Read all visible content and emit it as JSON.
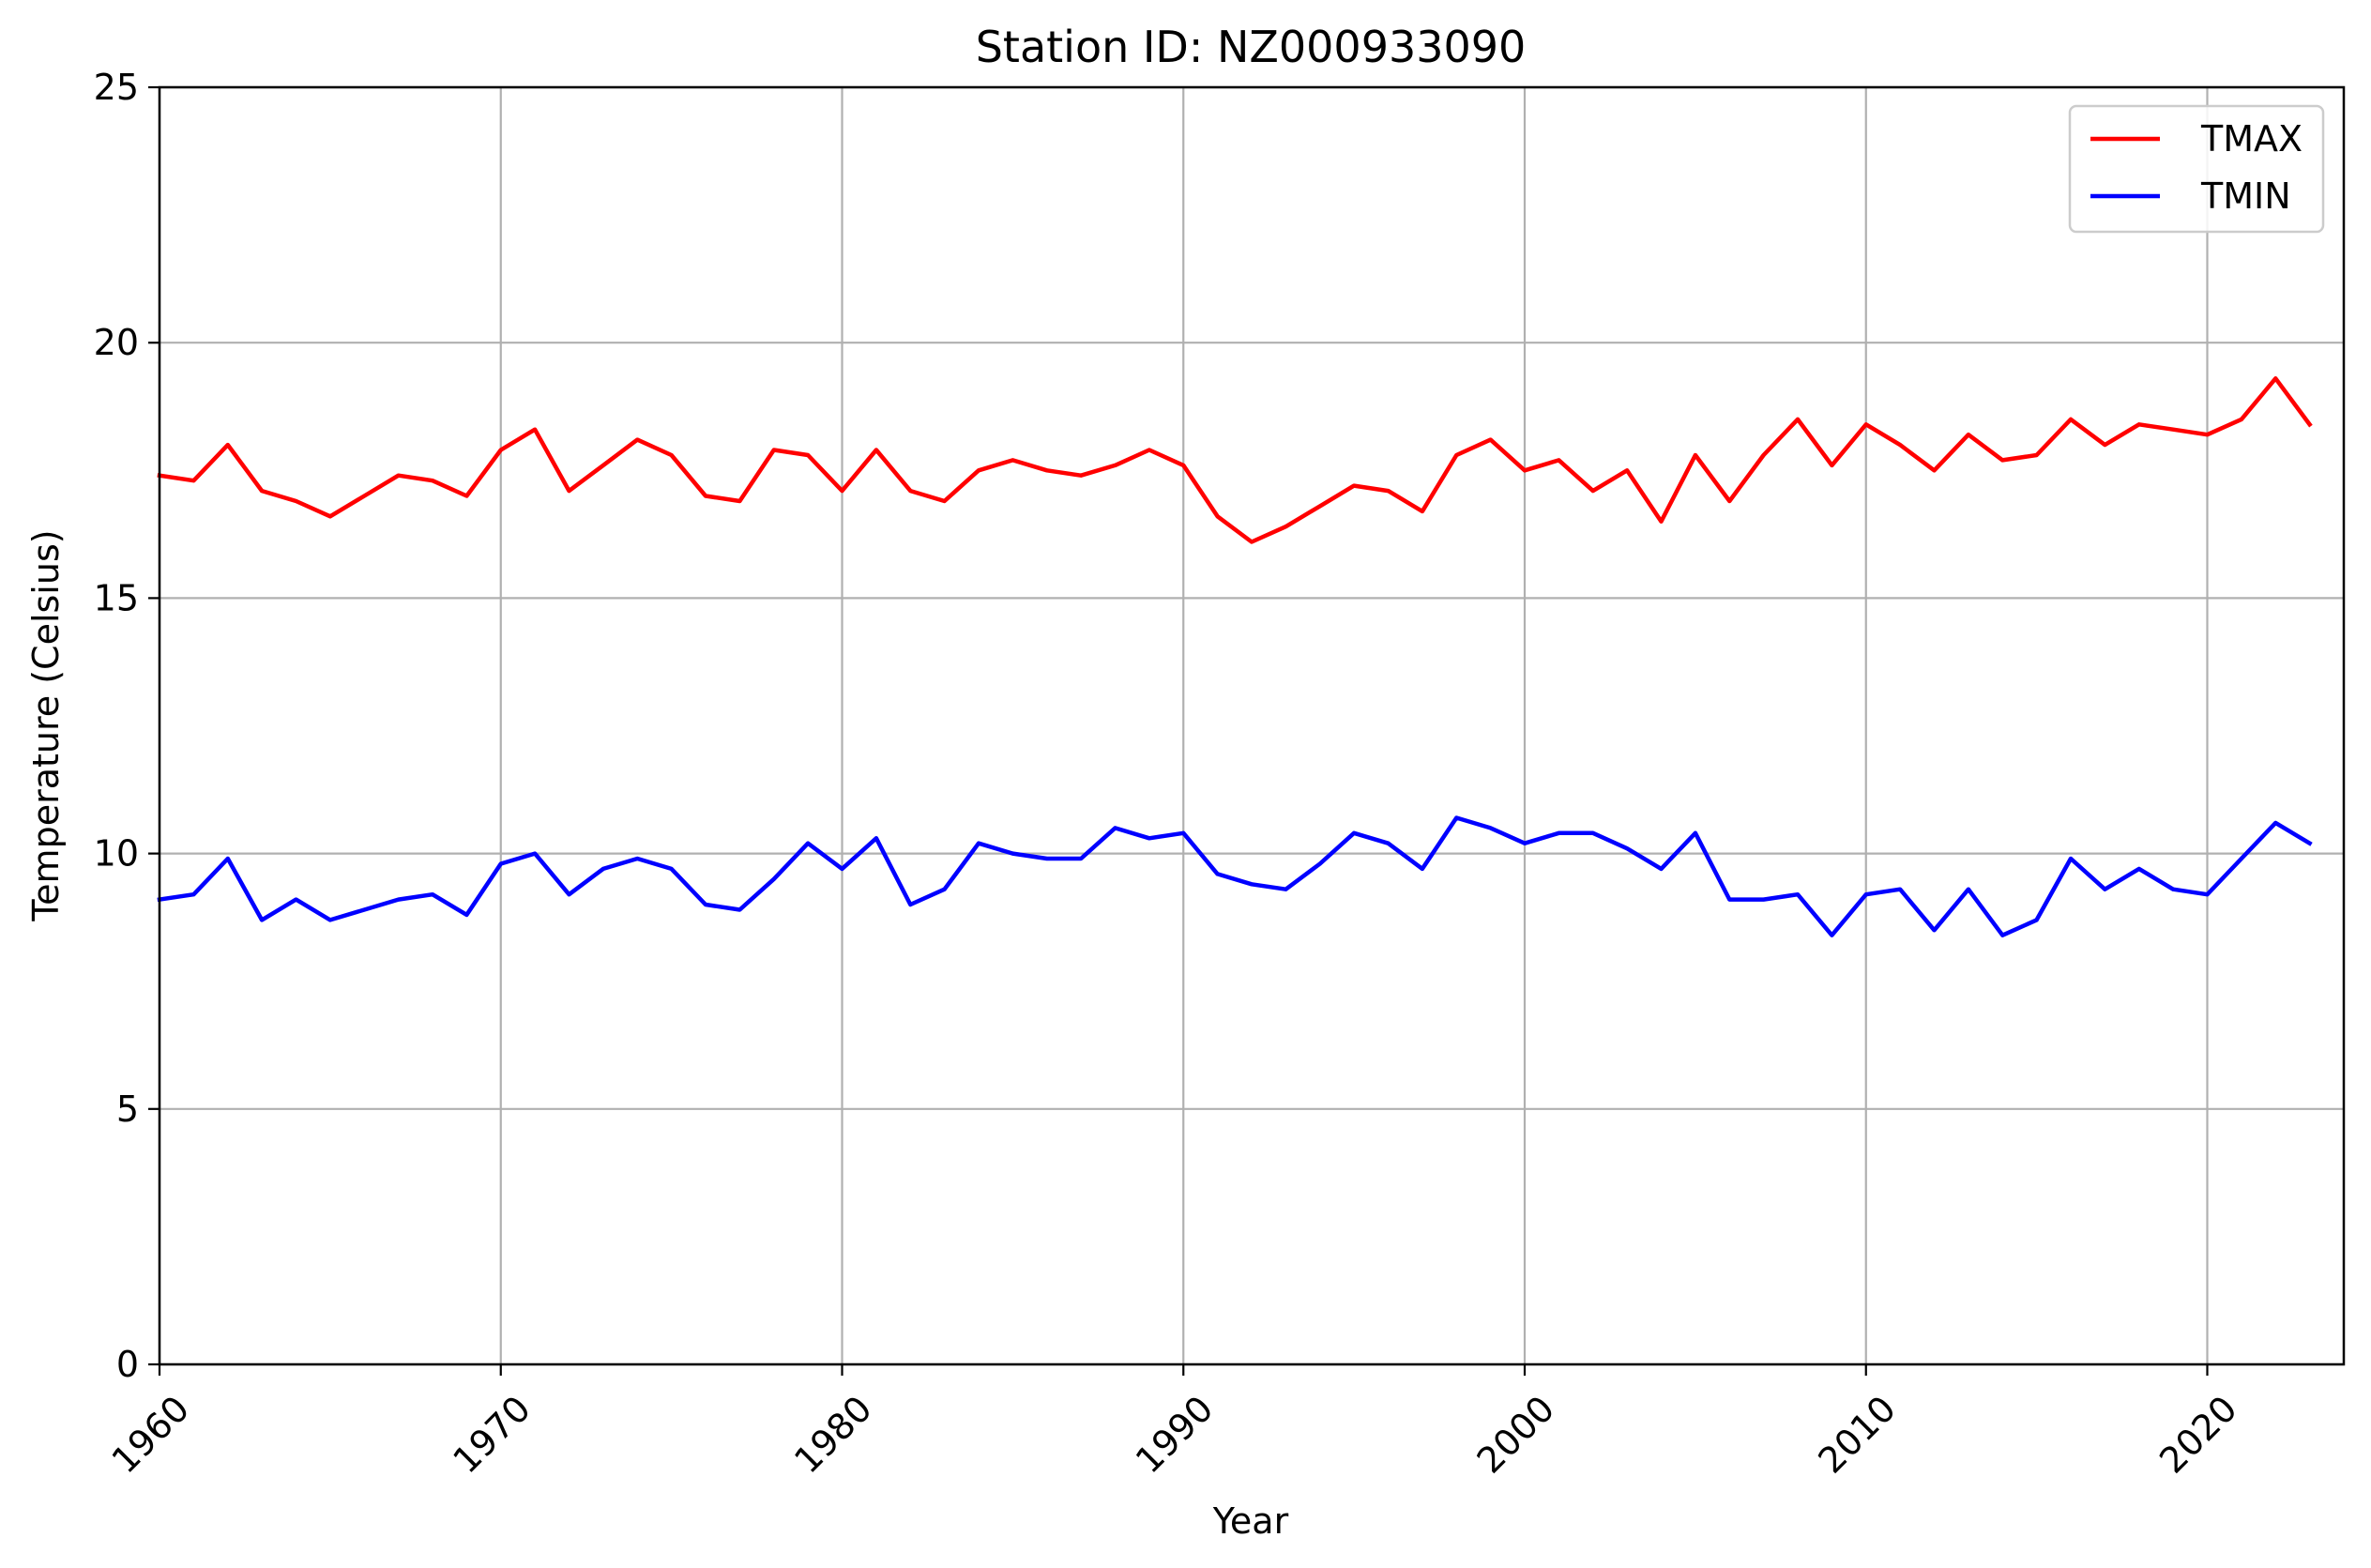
{
  "chart_data": {
    "type": "line",
    "title": "Station ID: NZ000933090",
    "xlabel": "Year",
    "ylabel": "Temperature (Celsius)",
    "xlim": [
      1960,
      2024
    ],
    "ylim": [
      0,
      25
    ],
    "xticks": [
      "1960",
      "1970",
      "1980",
      "1990",
      "2000",
      "2010",
      "2020"
    ],
    "yticks": [
      "0",
      "5",
      "10",
      "15",
      "20",
      "25"
    ],
    "grid": true,
    "legend_position": "top-right",
    "x": [
      1960,
      1961,
      1962,
      1963,
      1964,
      1965,
      1966,
      1967,
      1968,
      1969,
      1970,
      1971,
      1972,
      1973,
      1974,
      1975,
      1976,
      1977,
      1978,
      1979,
      1980,
      1981,
      1982,
      1983,
      1984,
      1985,
      1986,
      1987,
      1988,
      1989,
      1990,
      1991,
      1992,
      1993,
      1994,
      1995,
      1996,
      1997,
      1998,
      1999,
      2000,
      2001,
      2002,
      2003,
      2004,
      2005,
      2006,
      2007,
      2008,
      2009,
      2010,
      2011,
      2012,
      2013,
      2014,
      2015,
      2016,
      2017,
      2018,
      2019,
      2020,
      2021,
      2022,
      2023
    ],
    "series": [
      {
        "name": "TMAX",
        "color": "#ff0000",
        "values": [
          17.4,
          17.3,
          18.0,
          17.1,
          16.9,
          16.6,
          17.0,
          17.4,
          17.3,
          17.0,
          17.9,
          18.3,
          17.1,
          17.6,
          18.1,
          17.8,
          17.0,
          16.9,
          17.9,
          17.8,
          17.1,
          17.9,
          17.1,
          16.9,
          17.5,
          17.7,
          17.5,
          17.4,
          17.6,
          17.9,
          17.6,
          16.6,
          16.1,
          16.4,
          16.8,
          17.2,
          17.1,
          16.7,
          17.8,
          18.1,
          17.5,
          17.7,
          17.1,
          17.5,
          16.5,
          17.8,
          16.9,
          17.8,
          18.5,
          17.6,
          18.4,
          18.0,
          17.5,
          18.2,
          17.7,
          17.8,
          18.5,
          18.0,
          18.4,
          18.3,
          18.2,
          18.5,
          19.3,
          18.4
        ]
      },
      {
        "name": "TMIN",
        "color": "#0000ff",
        "values": [
          9.1,
          9.2,
          9.9,
          8.7,
          9.1,
          8.7,
          8.9,
          9.1,
          9.2,
          8.8,
          9.8,
          10.0,
          9.2,
          9.7,
          9.9,
          9.7,
          9.0,
          8.9,
          9.5,
          10.2,
          9.7,
          10.3,
          9.0,
          9.3,
          10.2,
          10.0,
          9.9,
          9.9,
          10.5,
          10.3,
          10.4,
          9.6,
          9.4,
          9.3,
          9.8,
          10.4,
          10.2,
          9.7,
          10.7,
          10.5,
          10.2,
          10.4,
          10.4,
          10.1,
          9.7,
          10.4,
          9.1,
          9.1,
          9.2,
          8.4,
          9.2,
          9.3,
          8.5,
          9.3,
          8.4,
          8.7,
          9.9,
          9.3,
          9.7,
          9.3,
          9.2,
          9.9,
          10.6,
          10.2
        ]
      }
    ]
  }
}
